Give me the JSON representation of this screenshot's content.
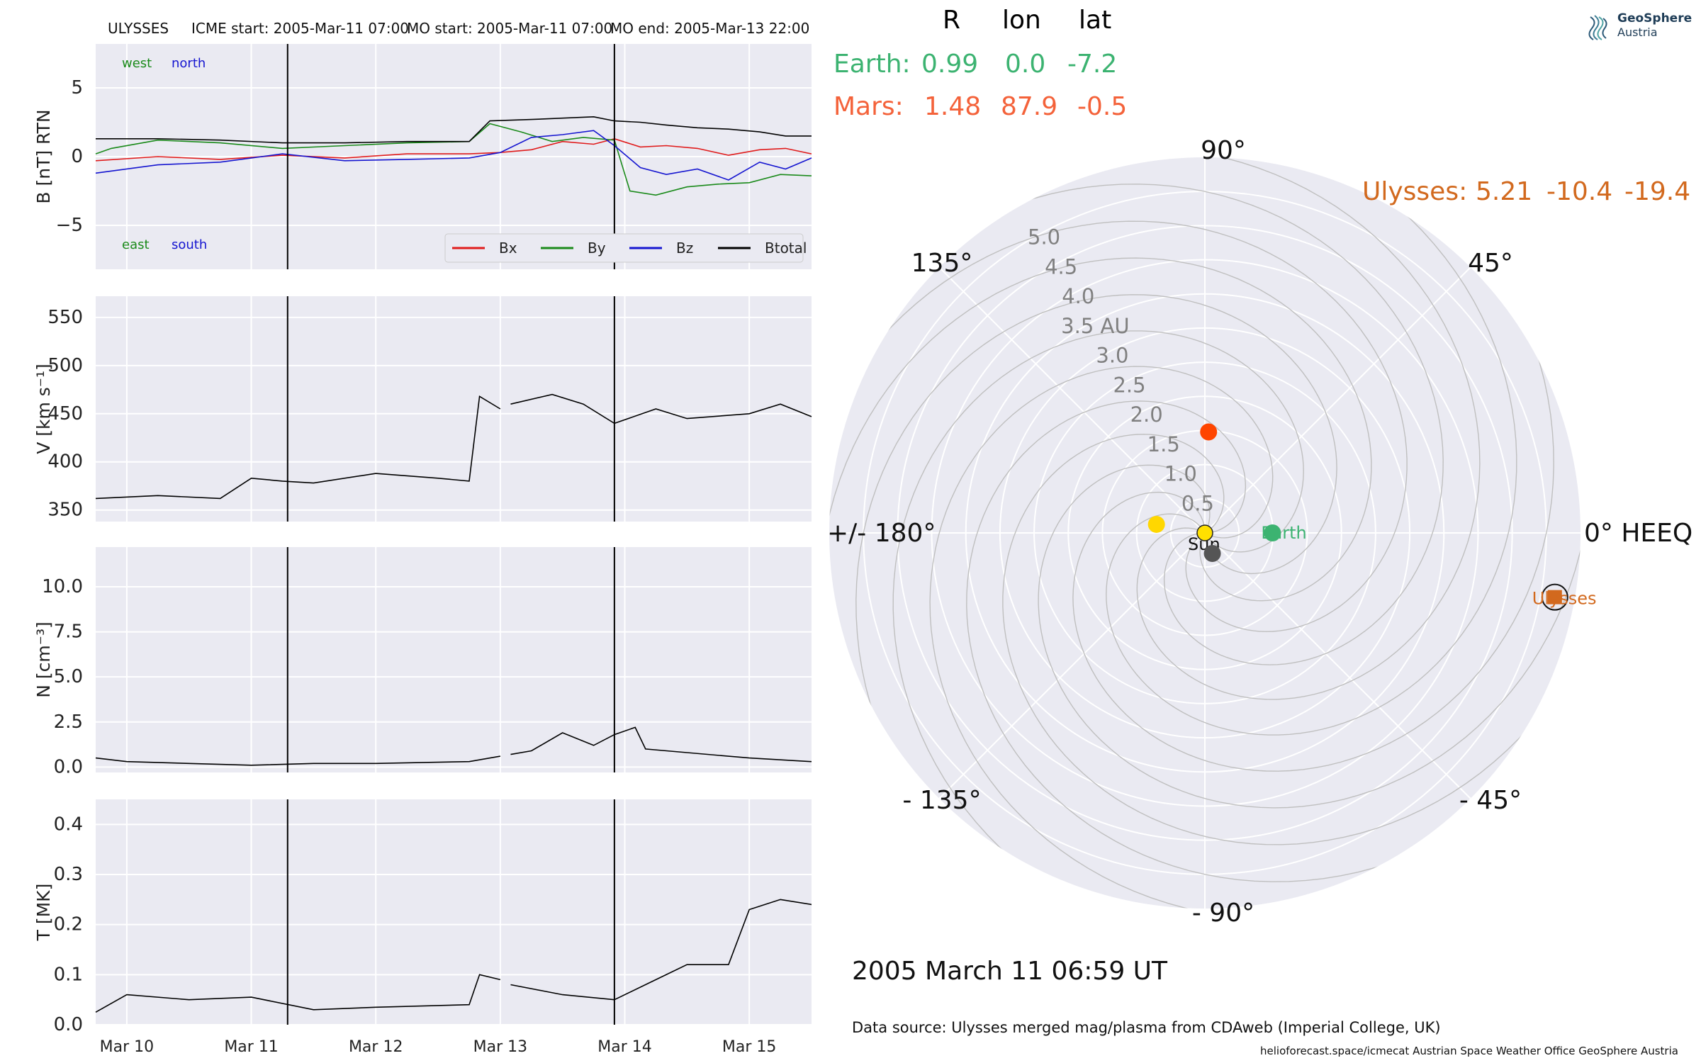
{
  "header": {
    "spacecraft": "ULYSSES",
    "icme_start": "ICME start: 2005-Mar-11 07:00",
    "mo_start": "MO start: 2005-Mar-11 07:00",
    "mo_end": "MO end: 2005-Mar-13 22:00"
  },
  "position_table": {
    "col_r": "R",
    "col_lon": "lon",
    "col_lat": "lat",
    "earth": {
      "label": "Earth:",
      "r": "0.99",
      "lon": "0.0",
      "lat": "-7.2",
      "color": "#3cb371"
    },
    "mars": {
      "label": "Mars:",
      "r": "1.48",
      "lon": "87.9",
      "lat": "-0.5",
      "color": "#f4623a"
    },
    "ulysses": {
      "label": "Ulysses:",
      "r": "5.21",
      "lon": "-10.4",
      "lat": "-19.4",
      "color": "#d2691e"
    }
  },
  "logo": {
    "line1": "GeoSphere",
    "line2": "Austria"
  },
  "timestamp": "2005 March 11  06:59 UT",
  "data_source": "Data source: Ulysses merged mag/plasma from CDAweb (Imperial College, UK)",
  "footer": "helioforecast.space/icmecat   Austrian Space Weather Office   GeoSphere Austria",
  "chart_data": [
    {
      "type": "line",
      "name": "magnetic field",
      "ylabel": "B [nT] RTN",
      "ylim": [
        -8.2,
        8.2
      ],
      "yticks": [
        5,
        0,
        -5
      ],
      "yticklabels": [
        "5",
        "0",
        "−5"
      ],
      "x_start": "2005-03-09 18:00",
      "x_end": "2005-03-15 12:00",
      "markers": [
        "2005-03-11 07:00",
        "2005-03-13 22:00"
      ],
      "corner_labels": {
        "west": "west",
        "north": "north",
        "east": "east",
        "south": "south"
      },
      "corner_colors": {
        "west": "#1a8a1a",
        "north": "#1515d0",
        "east": "#1a8a1a",
        "south": "#1515d0"
      },
      "legend": "bottom-right",
      "series": [
        {
          "name": "Bx",
          "color": "#e01b1b",
          "x": [
            "2005-03-09 18:00",
            "2005-03-10 06:00",
            "2005-03-10 18:00",
            "2005-03-11 06:00",
            "2005-03-11 18:00",
            "2005-03-12 06:00",
            "2005-03-12 18:00",
            "2005-03-13 00:00",
            "2005-03-13 06:00",
            "2005-03-13 12:00",
            "2005-03-13 18:00",
            "2005-03-13 22:00",
            "2005-03-14 03:00",
            "2005-03-14 08:00",
            "2005-03-14 14:00",
            "2005-03-14 20:00",
            "2005-03-15 02:00",
            "2005-03-15 07:00",
            "2005-03-15 12:00"
          ],
          "y": [
            -0.3,
            0.0,
            -0.2,
            0.1,
            -0.1,
            0.2,
            0.2,
            0.3,
            0.5,
            1.1,
            0.9,
            1.3,
            0.7,
            0.8,
            0.6,
            0.1,
            0.5,
            0.6,
            0.2
          ]
        },
        {
          "name": "By",
          "color": "#1a8a1a",
          "x": [
            "2005-03-09 18:00",
            "2005-03-09 21:00",
            "2005-03-10 06:00",
            "2005-03-10 18:00",
            "2005-03-11 06:00",
            "2005-03-11 18:00",
            "2005-03-12 06:00",
            "2005-03-12 18:00",
            "2005-03-12 22:00",
            "2005-03-13 04:00",
            "2005-03-13 10:00",
            "2005-03-13 16:00",
            "2005-03-13 22:00",
            "2005-03-14 01:00",
            "2005-03-14 06:00",
            "2005-03-14 12:00",
            "2005-03-14 18:00",
            "2005-03-15 00:00",
            "2005-03-15 06:00",
            "2005-03-15 12:00"
          ],
          "y": [
            0.2,
            0.6,
            1.2,
            1.0,
            0.6,
            0.8,
            1.0,
            1.1,
            2.4,
            1.8,
            1.1,
            1.4,
            1.2,
            -2.5,
            -2.8,
            -2.2,
            -2.0,
            -1.9,
            -1.3,
            -1.4
          ]
        },
        {
          "name": "Bz",
          "color": "#1515d0",
          "x": [
            "2005-03-09 18:00",
            "2005-03-10 06:00",
            "2005-03-10 18:00",
            "2005-03-11 06:00",
            "2005-03-11 18:00",
            "2005-03-12 06:00",
            "2005-03-12 18:00",
            "2005-03-13 00:00",
            "2005-03-13 06:00",
            "2005-03-13 12:00",
            "2005-03-13 18:00",
            "2005-03-13 22:00",
            "2005-03-14 03:00",
            "2005-03-14 08:00",
            "2005-03-14 14:00",
            "2005-03-14 20:00",
            "2005-03-15 02:00",
            "2005-03-15 07:00",
            "2005-03-15 12:00"
          ],
          "y": [
            -1.2,
            -0.6,
            -0.4,
            0.2,
            -0.3,
            -0.2,
            -0.1,
            0.3,
            1.4,
            1.6,
            1.9,
            0.8,
            -0.8,
            -1.3,
            -0.9,
            -1.7,
            -0.4,
            -0.9,
            -0.1
          ]
        },
        {
          "name": "Btotal",
          "color": "#000000",
          "x": [
            "2005-03-09 18:00",
            "2005-03-10 06:00",
            "2005-03-10 18:00",
            "2005-03-11 06:00",
            "2005-03-11 18:00",
            "2005-03-12 06:00",
            "2005-03-12 18:00",
            "2005-03-12 22:00",
            "2005-03-13 06:00",
            "2005-03-13 12:00",
            "2005-03-13 18:00",
            "2005-03-13 22:00",
            "2005-03-14 03:00",
            "2005-03-14 08:00",
            "2005-03-14 14:00",
            "2005-03-14 20:00",
            "2005-03-15 02:00",
            "2005-03-15 07:00",
            "2005-03-15 12:00"
          ],
          "y": [
            1.3,
            1.3,
            1.2,
            1.0,
            1.0,
            1.1,
            1.1,
            2.6,
            2.7,
            2.8,
            2.9,
            2.6,
            2.5,
            2.3,
            2.1,
            2.0,
            1.8,
            1.5,
            1.5
          ]
        }
      ]
    },
    {
      "type": "line",
      "name": "speed",
      "ylabel": "V [km s⁻¹]",
      "ylim": [
        338,
        572
      ],
      "yticks": [
        550,
        500,
        450,
        400,
        350
      ],
      "markers": [
        "2005-03-11 07:00",
        "2005-03-13 22:00"
      ],
      "series": [
        {
          "name": "V",
          "color": "#000000",
          "x": [
            "2005-03-09 18:00",
            "2005-03-10 06:00",
            "2005-03-10 18:00",
            "2005-03-11 00:00",
            "2005-03-11 06:00",
            "2005-03-11 12:00",
            "2005-03-12 00:00",
            "2005-03-12 12:00",
            "2005-03-12 18:00",
            "2005-03-12 20:00",
            "2005-03-13 00:00",
            "null",
            "2005-03-13 02:00",
            "2005-03-13 10:00",
            "2005-03-13 16:00",
            "2005-03-13 22:00",
            "2005-03-14 06:00",
            "2005-03-14 12:00",
            "2005-03-15 00:00",
            "2005-03-15 06:00",
            "2005-03-15 12:00"
          ],
          "y": [
            362,
            365,
            362,
            383,
            380,
            378,
            388,
            383,
            380,
            468,
            455,
            null,
            460,
            470,
            460,
            440,
            455,
            445,
            450,
            460,
            447
          ]
        }
      ]
    },
    {
      "type": "line",
      "name": "density",
      "ylabel": "N [cm⁻³]",
      "ylim": [
        -0.3,
        12.2
      ],
      "yticks": [
        10.0,
        7.5,
        5.0,
        2.5,
        0.0
      ],
      "yticklabels": [
        "10.0",
        "7.5",
        "5.0",
        "2.5",
        "0.0"
      ],
      "markers": [
        "2005-03-11 07:00",
        "2005-03-13 22:00"
      ],
      "series": [
        {
          "name": "N",
          "color": "#000000",
          "x": [
            "2005-03-09 18:00",
            "2005-03-10 00:00",
            "2005-03-10 12:00",
            "2005-03-11 00:00",
            "2005-03-11 12:00",
            "2005-03-12 00:00",
            "2005-03-12 18:00",
            "2005-03-13 00:00",
            "null",
            "2005-03-13 02:00",
            "2005-03-13 06:00",
            "2005-03-13 12:00",
            "2005-03-13 18:00",
            "2005-03-13 22:00",
            "2005-03-14 02:00",
            "2005-03-14 04:00",
            "2005-03-14 12:00",
            "2005-03-15 00:00",
            "2005-03-15 12:00"
          ],
          "y": [
            0.5,
            0.3,
            0.2,
            0.1,
            0.2,
            0.2,
            0.3,
            0.6,
            null,
            0.7,
            0.9,
            1.9,
            1.2,
            1.8,
            2.2,
            1.0,
            0.8,
            0.5,
            0.3
          ]
        }
      ]
    },
    {
      "type": "line",
      "name": "temperature",
      "ylabel": "T [MK]",
      "ylim": [
        0.0,
        0.45
      ],
      "yticks": [
        0.4,
        0.3,
        0.2,
        0.1,
        0.0
      ],
      "yticklabels": [
        "0.4",
        "0.3",
        "0.2",
        "0.1",
        "0.0"
      ],
      "xticks": [
        "2005-03-10 00:00",
        "2005-03-11 00:00",
        "2005-03-12 00:00",
        "2005-03-13 00:00",
        "2005-03-14 00:00",
        "2005-03-15 00:00"
      ],
      "xticklabels": [
        "Mar 10",
        "Mar 11",
        "Mar 12",
        "Mar 13",
        "Mar 14",
        "Mar 15"
      ],
      "markers": [
        "2005-03-11 07:00",
        "2005-03-13 22:00"
      ],
      "series": [
        {
          "name": "T",
          "color": "#000000",
          "x": [
            "2005-03-09 18:00",
            "2005-03-10 00:00",
            "2005-03-10 12:00",
            "2005-03-11 00:00",
            "2005-03-11 12:00",
            "2005-03-12 00:00",
            "2005-03-12 18:00",
            "2005-03-12 20:00",
            "2005-03-13 00:00",
            "null",
            "2005-03-13 02:00",
            "2005-03-13 12:00",
            "2005-03-13 22:00",
            "2005-03-14 06:00",
            "2005-03-14 12:00",
            "2005-03-14 20:00",
            "2005-03-15 00:00",
            "2005-03-15 06:00",
            "2005-03-15 12:00"
          ],
          "y": [
            0.025,
            0.06,
            0.05,
            0.055,
            0.03,
            0.035,
            0.04,
            0.1,
            0.09,
            null,
            0.08,
            0.06,
            0.05,
            0.09,
            0.12,
            0.12,
            0.23,
            0.25,
            0.24
          ]
        }
      ]
    },
    {
      "type": "scatter",
      "name": "polar position plot",
      "frame": "HEEQ",
      "radial_range": [
        0,
        5.5
      ],
      "radial_ticks": [
        "0.5",
        "1.0",
        "1.5",
        "2.0",
        "2.5",
        "3.0",
        "3.5 AU",
        "4.0",
        "4.5",
        "5.0"
      ],
      "angle_labels": {
        "0": "0° HEEQ",
        "45": "45°",
        "90": "90°",
        "135": "135°",
        "180": "+/- 180°",
        "-135": "- 135°",
        "-90": "- 90°",
        "-45": "- 45°"
      },
      "bodies": [
        {
          "name": "Sun",
          "r": 0.0,
          "lon": 0,
          "color": "#ffe000",
          "label": "Sun"
        },
        {
          "name": "Earth",
          "r": 0.99,
          "lon": 0.0,
          "color": "#3cb371",
          "label": "Earth"
        },
        {
          "name": "Mars",
          "r": 1.48,
          "lon": 87.9,
          "color": "#ff4500",
          "label": ""
        },
        {
          "name": "Venus",
          "r": 0.72,
          "lon": 170,
          "color": "#ffd700",
          "label": ""
        },
        {
          "name": "Mercury",
          "r": 0.32,
          "lon": -70,
          "color": "#555555",
          "label": ""
        },
        {
          "name": "Ulysses",
          "r": 5.21,
          "lon": -10.4,
          "color": "#d2691e",
          "label": "Ulysses"
        }
      ]
    }
  ]
}
